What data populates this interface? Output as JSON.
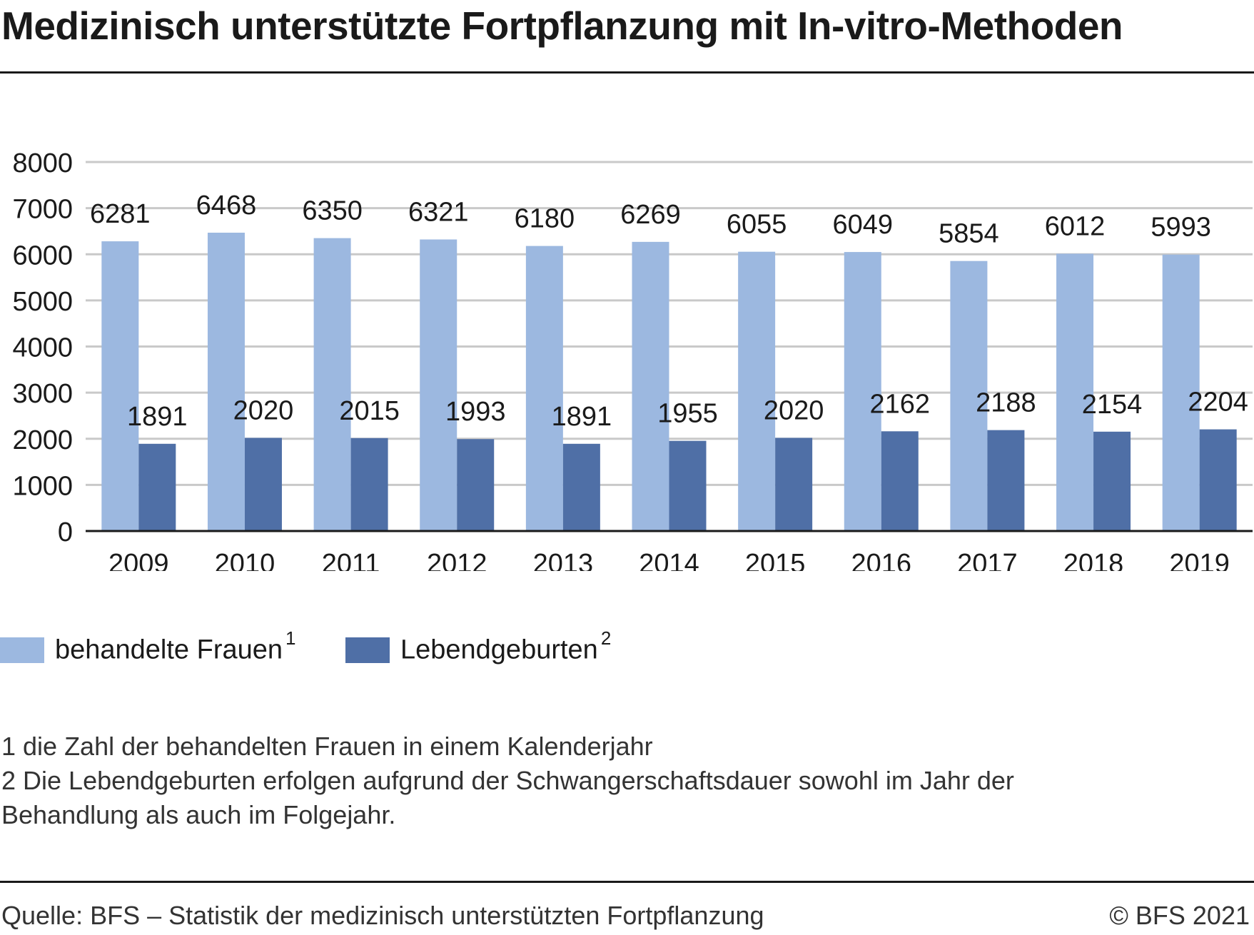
{
  "title": "Medizinisch unterstützte Fortpflanzung mit In-vitro-Methoden",
  "colors": {
    "series1": "#9cb8e0",
    "series2": "#4f6fa6",
    "grid": "#c9c9c9",
    "axis": "#1a1a1a"
  },
  "legend": {
    "items": [
      {
        "label": "behandelte Frauen",
        "marker": "1"
      },
      {
        "label": "Lebendgeburten",
        "marker": "2"
      }
    ]
  },
  "footnotes": [
    "1 die Zahl der behandelten Frauen in einem Kalenderjahr",
    "2 Die Lebendgeburten erfolgen aufgrund der Schwangerschaftsdauer sowohl im Jahr der",
    "Behandlung als auch im Folgejahr."
  ],
  "source": "Quelle: BFS – Statistik der medizinisch unterstützten Fortpflanzung",
  "copyright": "© BFS 2021",
  "chart_data": {
    "type": "bar",
    "categories": [
      "2009",
      "2010",
      "2011",
      "2012",
      "2013",
      "2014",
      "2015",
      "2016",
      "2017",
      "2018",
      "2019"
    ],
    "series": [
      {
        "name": "behandelte Frauen",
        "values": [
          6281,
          6468,
          6350,
          6321,
          6180,
          6269,
          6055,
          6049,
          5854,
          6012,
          5993
        ]
      },
      {
        "name": "Lebendgeburten",
        "values": [
          1891,
          2020,
          2015,
          1993,
          1891,
          1955,
          2020,
          2162,
          2188,
          2154,
          2204
        ]
      }
    ],
    "yticks": [
      "0",
      "1000",
      "2000",
      "3000",
      "4000",
      "5000",
      "6000",
      "7000",
      "8000"
    ],
    "ylim": [
      0,
      8000
    ],
    "grid": true,
    "data_labels": true,
    "legend_position": "bottom-left"
  }
}
